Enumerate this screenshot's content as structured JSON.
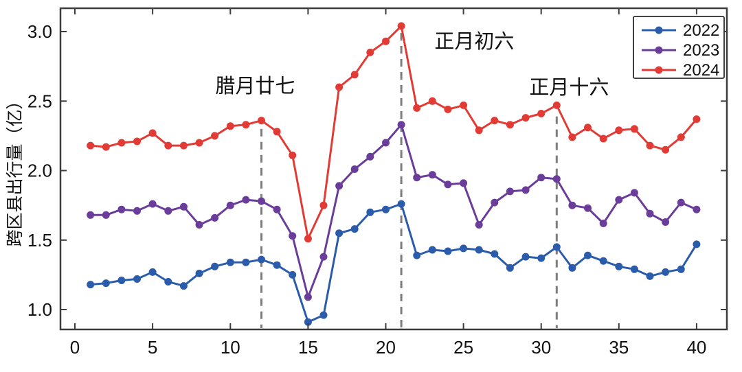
{
  "chart_data": {
    "type": "line",
    "title": "",
    "xlabel": "",
    "ylabel": "跨区县出行量（亿）",
    "xlim": [
      -0.93,
      41.95
    ],
    "ylim": [
      0.857,
      3.168
    ],
    "x_ticks": [
      0,
      5,
      10,
      15,
      20,
      25,
      30,
      35,
      40
    ],
    "y_ticks": [
      1.0,
      1.5,
      2.0,
      2.5,
      3.0
    ],
    "y_tick_labels": [
      "1.0",
      "1.5",
      "2.0",
      "2.5",
      "3.0"
    ],
    "grid": false,
    "legend_position": "top-right",
    "x": [
      1,
      2,
      3,
      4,
      5,
      6,
      7,
      8,
      9,
      10,
      11,
      12,
      13,
      14,
      15,
      16,
      17,
      18,
      19,
      20,
      21,
      22,
      23,
      24,
      25,
      26,
      27,
      28,
      29,
      30,
      31,
      32,
      33,
      34,
      35,
      36,
      37,
      38,
      39,
      40
    ],
    "series": [
      {
        "name": "2022",
        "color": "#2b5cab",
        "values": [
          1.18,
          1.19,
          1.21,
          1.22,
          1.27,
          1.2,
          1.17,
          1.26,
          1.31,
          1.34,
          1.34,
          1.36,
          1.32,
          1.25,
          0.91,
          0.96,
          1.55,
          1.58,
          1.7,
          1.72,
          1.76,
          1.39,
          1.43,
          1.42,
          1.44,
          1.43,
          1.4,
          1.3,
          1.38,
          1.37,
          1.45,
          1.3,
          1.39,
          1.35,
          1.31,
          1.29,
          1.24,
          1.27,
          1.29,
          1.47
        ]
      },
      {
        "name": "2023",
        "color": "#6a3d9a",
        "values": [
          1.68,
          1.68,
          1.72,
          1.71,
          1.76,
          1.71,
          1.74,
          1.61,
          1.66,
          1.75,
          1.79,
          1.78,
          1.72,
          1.53,
          1.09,
          1.38,
          1.89,
          2.01,
          2.1,
          2.2,
          2.33,
          1.95,
          1.97,
          1.9,
          1.91,
          1.61,
          1.77,
          1.85,
          1.86,
          1.95,
          1.94,
          1.75,
          1.73,
          1.62,
          1.79,
          1.84,
          1.69,
          1.63,
          1.77,
          1.72
        ]
      },
      {
        "name": "2024",
        "color": "#e23b35",
        "values": [
          2.18,
          2.17,
          2.2,
          2.21,
          2.27,
          2.18,
          2.18,
          2.2,
          2.25,
          2.32,
          2.33,
          2.36,
          2.28,
          2.11,
          1.51,
          1.75,
          2.6,
          2.69,
          2.85,
          2.93,
          3.04,
          2.45,
          2.5,
          2.44,
          2.47,
          2.29,
          2.36,
          2.33,
          2.38,
          2.41,
          2.47,
          2.24,
          2.31,
          2.23,
          2.29,
          2.3,
          2.18,
          2.15,
          2.24,
          2.37
        ]
      }
    ],
    "annotations": [
      {
        "text": "腊月廿七",
        "x": 11.6,
        "y": 2.61
      },
      {
        "text": "正月初六",
        "x": 25.7,
        "y": 2.93
      },
      {
        "text": "正月十六",
        "x": 31.8,
        "y": 2.6
      }
    ],
    "vlines": [
      {
        "x": 12,
        "y_top": 2.3
      },
      {
        "x": 21,
        "y_top": 2.99
      },
      {
        "x": 31,
        "y_top": 2.39
      }
    ],
    "style": {
      "dash_color": "#7d7d7d",
      "spine_color": "#3c3c3c",
      "marker_radius": 5.5,
      "line_width": 3
    }
  }
}
